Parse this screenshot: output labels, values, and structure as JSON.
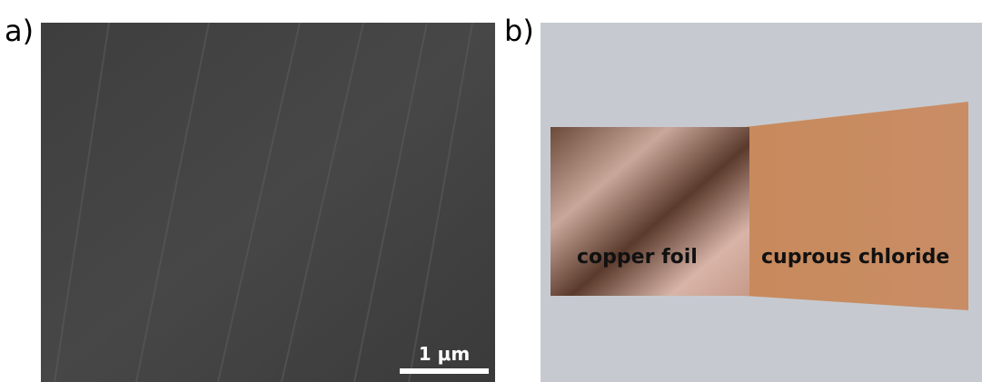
{
  "panels": [
    {
      "label": "a)",
      "scale_bar": "1 μm"
    },
    {
      "label": "b)",
      "annotations": [
        "copper foil",
        "cuprous chloride"
      ]
    }
  ]
}
